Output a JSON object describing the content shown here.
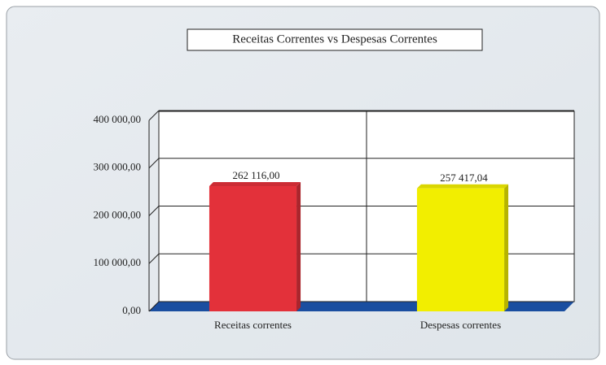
{
  "chart_data": {
    "type": "bar",
    "title": "Receitas Correntes vs Despesas Correntes",
    "categories": [
      "Receitas correntes",
      "Despesas correntes"
    ],
    "values": [
      262116.0,
      257417.04
    ],
    "value_labels": [
      "262 116,00",
      "257 417,04"
    ],
    "colors": [
      "#e3313a",
      "#f2ee00"
    ],
    "ylim": [
      0,
      400000
    ],
    "yticks": [
      {
        "value": 0,
        "label": "0,00"
      },
      {
        "value": 100000,
        "label": "100 000,00"
      },
      {
        "value": 200000,
        "label": "200 000,00"
      },
      {
        "value": 300000,
        "label": "300 000,00"
      },
      {
        "value": 400000,
        "label": "400 000,00"
      }
    ],
    "grid": true
  }
}
